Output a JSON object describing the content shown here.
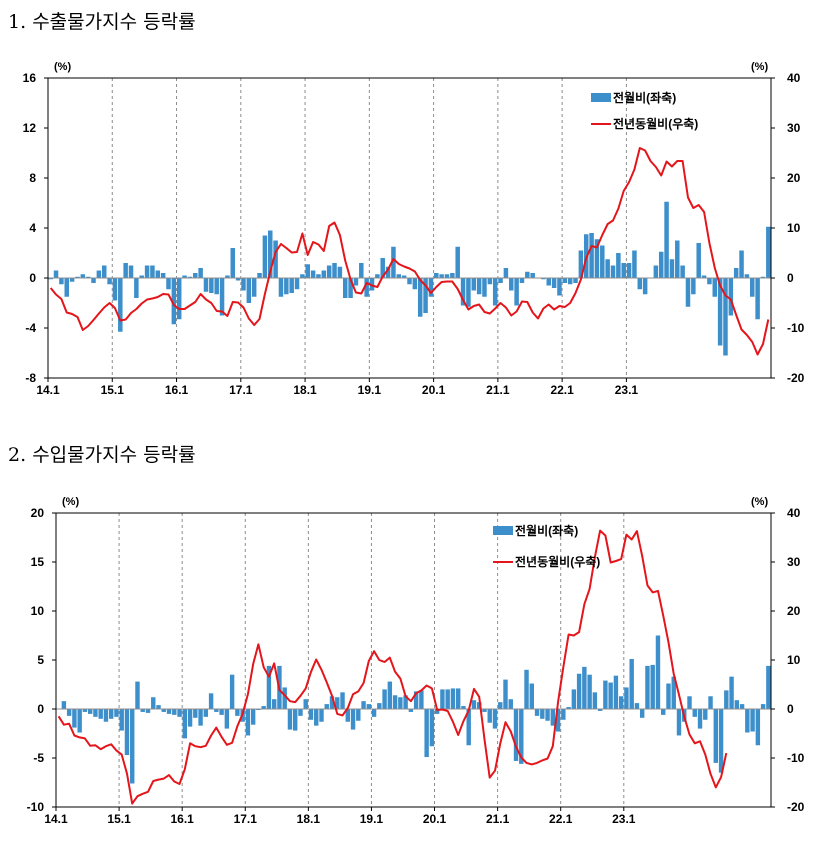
{
  "charts": [
    {
      "number": "1.",
      "title": "수출물가지수 등락률"
    },
    {
      "number": "2.",
      "title": "수입물가지수 등락률"
    }
  ],
  "colors": {
    "bar": "#3d8fcb",
    "line": "#e4151b",
    "grid": "#8c8c8c",
    "axis": "#000000"
  },
  "chart_data": [
    {
      "type": "bar+line",
      "title": "1. 수출물가지수 등락률",
      "left_axis_unit": "(%)",
      "right_axis_unit": "(%)",
      "y_left_ticks": [
        "16",
        "12",
        "8",
        "4",
        "0",
        "-4",
        "-8"
      ],
      "y_right_ticks": [
        "40",
        "30",
        "20",
        "10",
        "0",
        "-10",
        "-20"
      ],
      "y_left_lim": [
        -8,
        16
      ],
      "y_right_lim": [
        -20,
        40
      ],
      "x_ticks": [
        "14.1",
        "15.1",
        "16.1",
        "17.1",
        "18.1",
        "19.1",
        "20.1",
        "21.1",
        "22.1",
        "23.1"
      ],
      "series": [
        {
          "name": "전월비(좌축)",
          "axis": "left",
          "type": "bar",
          "values": [
            -0.1,
            0.6,
            -0.5,
            -1.5,
            -0.3,
            0.1,
            0.3,
            0.1,
            -0.4,
            0.6,
            1.0,
            -0.5,
            -1.8,
            -4.3,
            1.2,
            1.0,
            -1.6,
            0.2,
            1.0,
            1.0,
            0.6,
            0.4,
            -0.9,
            -3.7,
            -3.3,
            0.2,
            0.1,
            0.4,
            0.8,
            -1.1,
            -1.2,
            -1.3,
            -3.0,
            0.2,
            2.4,
            -0.2,
            -1.0,
            -2.0,
            -1.5,
            0.4,
            3.4,
            3.8,
            3.0,
            -1.5,
            -1.3,
            -1.2,
            -0.9,
            0.3,
            1.1,
            0.6,
            0.3,
            0.6,
            1.0,
            1.2,
            0.9,
            -1.6,
            -1.6,
            -0.6,
            1.2,
            -1.5,
            -1.0,
            0.3,
            1.6,
            0.9,
            2.5,
            0.3,
            0.2,
            -0.5,
            -0.9,
            -3.1,
            -2.8,
            -1.5,
            0.4,
            0.3,
            0.3,
            0.4,
            2.5,
            -2.2,
            -2.3,
            -1.0,
            -1.3,
            -1.5,
            -0.5,
            -2.2,
            -0.4,
            0.8,
            -1.0,
            -2.2,
            -0.4,
            0.5,
            0.4,
            0.0,
            -0.1,
            -0.6,
            -0.8,
            -1.4,
            -0.4,
            -0.5,
            -0.4,
            2.2,
            3.5,
            3.6,
            3.1,
            2.6,
            1.5,
            1.0,
            2.0,
            1.2,
            1.2,
            2.2,
            -0.9,
            -1.3,
            0.0,
            1.0,
            2.1,
            6.1,
            1.5,
            3.0,
            1.0,
            -2.3,
            -1.3,
            2.8,
            0.2,
            -0.5,
            -1.5,
            -5.4,
            -6.2,
            -3.0,
            0.8,
            2.2,
            0.3,
            -1.5,
            -3.3,
            0.1,
            4.1
          ]
        },
        {
          "name": "전년동월비(우축)",
          "axis": "right",
          "type": "line",
          "values": [
            -2.0,
            -3.3,
            -4.2,
            -6.9,
            -7.2,
            -7.8,
            -10.4,
            -9.6,
            -8.4,
            -7.1,
            -5.9,
            -5.0,
            -6.0,
            -8.5,
            -8.3,
            -7.0,
            -6.2,
            -5.1,
            -4.3,
            -4.1,
            -3.8,
            -3.2,
            -3.3,
            -5.4,
            -6.2,
            -6.2,
            -5.5,
            -4.8,
            -3.2,
            -4.3,
            -5.0,
            -6.6,
            -6.7,
            -7.6,
            -4.8,
            -4.9,
            -5.9,
            -8.1,
            -9.4,
            -8.2,
            -3.2,
            1.3,
            5.2,
            6.8,
            6.0,
            5.1,
            5.2,
            8.9,
            4.6,
            7.2,
            6.7,
            5.4,
            10.4,
            11.1,
            8.6,
            3.5,
            -0.3,
            -2.9,
            -3.1,
            -1.0,
            -1.5,
            -1.8,
            0.3,
            1.7,
            3.8,
            2.8,
            2.3,
            1.9,
            1.3,
            -0.4,
            -1.5,
            -3.0,
            -1.8,
            -0.8,
            -0.7,
            -0.7,
            -2.2,
            -4.4,
            -6.3,
            -5.6,
            -5.3,
            -6.8,
            -7.1,
            -6.1,
            -5.0,
            -5.9,
            -7.5,
            -6.7,
            -4.7,
            -4.8,
            -6.9,
            -8.1,
            -6.1,
            -5.3,
            -6.3,
            -5.6,
            -5.8,
            -5.0,
            -3.0,
            -0.3,
            4.0,
            6.4,
            6.1,
            8.6,
            10.8,
            11.5,
            13.9,
            17.4,
            19.2,
            21.7,
            26.0,
            25.5,
            23.4,
            22.2,
            20.5,
            23.3,
            22.3,
            23.4,
            23.4,
            16.1,
            14.0,
            14.6,
            13.2,
            7.0,
            2.0,
            -1.5,
            -3.5,
            -4.3,
            -7.4,
            -10.3,
            -11.4,
            -12.8,
            -15.3,
            -13.2,
            -8.3
          ]
        }
      ],
      "legend_position": "top-right"
    },
    {
      "type": "bar+line",
      "title": "2. 수입물가지수 등락률",
      "left_axis_unit": "(%)",
      "right_axis_unit": "(%)",
      "y_left_ticks": [
        "20",
        "15",
        "10",
        "5",
        "0",
        "-5",
        "-10"
      ],
      "y_right_ticks": [
        "40",
        "30",
        "20",
        "10",
        "0",
        "-10",
        "-20"
      ],
      "y_left_lim": [
        -10,
        20
      ],
      "y_right_lim": [
        -20,
        40
      ],
      "x_ticks": [
        "14.1",
        "15.1",
        "16.1",
        "17.1",
        "18.1",
        "19.1",
        "20.1",
        "21.1",
        "22.1",
        "23.1"
      ],
      "series": [
        {
          "name": "전월비(좌축)",
          "axis": "left",
          "type": "bar",
          "values": [
            0.0,
            0.8,
            -0.7,
            -1.9,
            -2.4,
            -0.3,
            -0.5,
            -0.8,
            -1.0,
            -1.3,
            -1.0,
            -0.8,
            -2.2,
            -4.7,
            -7.6,
            2.8,
            -0.3,
            -0.4,
            1.2,
            0.4,
            -0.3,
            -0.5,
            -0.6,
            -0.8,
            -3.0,
            -1.8,
            -0.9,
            -1.7,
            -0.8,
            1.6,
            -0.3,
            -0.6,
            -2.0,
            3.5,
            -0.7,
            -1.3,
            -2.7,
            -1.6,
            -0.1,
            0.3,
            4.4,
            1.0,
            4.4,
            2.2,
            -2.1,
            -2.2,
            -0.7,
            1.0,
            -1.1,
            -1.7,
            -1.3,
            0.5,
            1.3,
            1.2,
            1.7,
            -1.3,
            -2.1,
            -1.2,
            0.8,
            0.5,
            -0.8,
            0.6,
            2.0,
            2.8,
            1.4,
            1.2,
            1.4,
            -0.3,
            1.8,
            1.9,
            -4.9,
            -3.8,
            -0.5,
            2.0,
            2.0,
            2.1,
            2.1,
            0.3,
            -3.7,
            0.9,
            0.7,
            -0.3,
            -1.4,
            -2.0,
            0.7,
            3.0,
            1.0,
            -5.3,
            -5.6,
            4.0,
            2.6,
            -0.7,
            -1.0,
            -1.2,
            -1.7,
            -2.3,
            -1.1,
            0.2,
            2.0,
            3.6,
            4.3,
            3.5,
            1.7,
            -0.2,
            2.9,
            2.7,
            3.4,
            1.3,
            2.2,
            5.1,
            0.6,
            -0.9,
            4.4,
            4.5,
            7.5,
            -0.6,
            2.6,
            3.3,
            -2.7,
            -1.3,
            1.3,
            -0.8,
            -2.0,
            -1.1,
            1.3,
            -5.5,
            -6.5,
            1.9,
            3.3,
            0.9,
            0.5,
            -2.4,
            -2.3,
            -3.7,
            0.5,
            4.4
          ]
        },
        {
          "name": "전년동월비(우축)",
          "axis": "right",
          "type": "line",
          "values": [
            -1.5,
            -3.2,
            -3.0,
            -5.4,
            -5.8,
            -6.0,
            -7.5,
            -7.4,
            -8.2,
            -7.6,
            -7.2,
            -8.5,
            -9.3,
            -13.2,
            -19.3,
            -17.8,
            -17.3,
            -16.9,
            -14.7,
            -14.4,
            -14.2,
            -13.5,
            -14.8,
            -15.3,
            -12.3,
            -7.0,
            -7.6,
            -7.8,
            -7.5,
            -5.4,
            -3.8,
            -5.7,
            -7.3,
            -6.9,
            -3.5,
            -1.0,
            3.0,
            9.2,
            13.2,
            8.5,
            6.6,
            9.3,
            3.9,
            2.8,
            1.6,
            1.4,
            2.7,
            4.2,
            7.6,
            10.1,
            8.0,
            5.4,
            2.7,
            -1.0,
            -1.3,
            0.2,
            3.0,
            3.6,
            5.3,
            9.8,
            11.8,
            10.0,
            9.6,
            10.5,
            7.6,
            6.2,
            2.6,
            1.6,
            3.2,
            3.8,
            4.8,
            4.2,
            -0.2,
            -0.1,
            -0.4,
            -2.6,
            -5.3,
            -2.5,
            -0.3,
            4.1,
            2.5,
            -6.2,
            -14.0,
            -12.6,
            -7.1,
            -2.7,
            -4.6,
            -7.7,
            -9.9,
            -11.0,
            -11.3,
            -11.0,
            -10.5,
            -10.1,
            -7.6,
            1.5,
            8.5,
            15.2,
            15.0,
            15.7,
            21.4,
            24.5,
            31.0,
            36.4,
            35.4,
            29.9,
            30.2,
            30.6,
            35.6,
            34.6,
            36.3,
            31.2,
            25.2,
            23.8,
            24.1,
            19.1,
            13.6,
            7.2,
            2.9,
            -1.6,
            -5.2,
            -7.0,
            -6.6,
            -9.3,
            -13.2,
            -16.0,
            -13.9,
            -9.0
          ]
        }
      ],
      "legend_position": "top-right"
    }
  ]
}
